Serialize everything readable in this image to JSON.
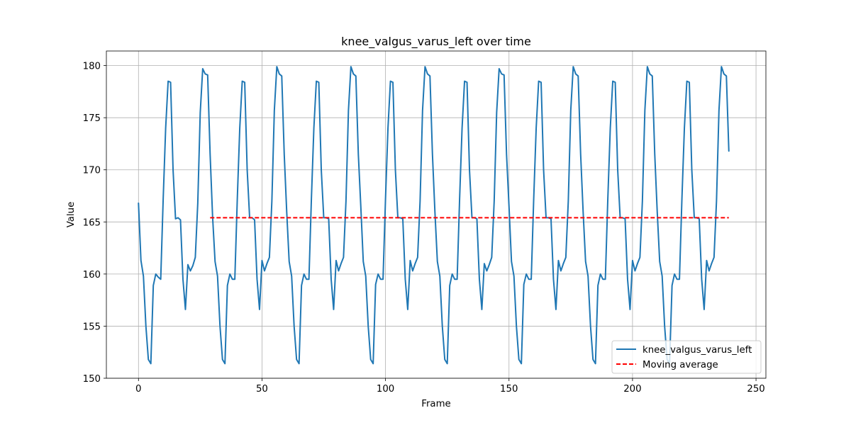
{
  "chart_data": {
    "type": "line",
    "title": "knee_valgus_varus_left over time",
    "xlabel": "Frame",
    "ylabel": "Value",
    "xlim": [
      -13,
      254
    ],
    "ylim": [
      150,
      181.4
    ],
    "xticks": [
      0,
      50,
      100,
      150,
      200,
      250
    ],
    "yticks": [
      150,
      155,
      160,
      165,
      170,
      175,
      180
    ],
    "grid": true,
    "legend_position": "lower-right",
    "series": [
      {
        "name": "knee_valgus_varus_left",
        "color": "#1f77b4",
        "style": "solid",
        "x": [
          0,
          1,
          2,
          3,
          4,
          5,
          6,
          7,
          8,
          9,
          10,
          11,
          12,
          13,
          14,
          15,
          16,
          17,
          18,
          19,
          20,
          21,
          22,
          23,
          24,
          25,
          26,
          27,
          28,
          29,
          30,
          31,
          32,
          33,
          34,
          35,
          36,
          37,
          38,
          39,
          40,
          41,
          42,
          43,
          44,
          45,
          46,
          47,
          48,
          49,
          50,
          51,
          52,
          53,
          54,
          55,
          56,
          57,
          58,
          59,
          60,
          61,
          62,
          63,
          64,
          65,
          66,
          67,
          68,
          69,
          70,
          71,
          72,
          73,
          74,
          75,
          76,
          77,
          78,
          79,
          80,
          81,
          82,
          83,
          84,
          85,
          86,
          87,
          88,
          89,
          90,
          91,
          92,
          93,
          94,
          95,
          96,
          97,
          98,
          99,
          100,
          101,
          102,
          103,
          104,
          105,
          106,
          107,
          108,
          109,
          110,
          111,
          112,
          113,
          114,
          115,
          116,
          117,
          118,
          119,
          120,
          121,
          122,
          123,
          124,
          125,
          126,
          127,
          128,
          129,
          130,
          131,
          132,
          133,
          134,
          135,
          136,
          137,
          138,
          139,
          140,
          141,
          142,
          143,
          144,
          145,
          146,
          147,
          148,
          149,
          150,
          151,
          152,
          153,
          154,
          155,
          156,
          157,
          158,
          159,
          160,
          161,
          162,
          163,
          164,
          165,
          166,
          167,
          168,
          169,
          170,
          171,
          172,
          173,
          174,
          175,
          176,
          177,
          178,
          179,
          180,
          181,
          182,
          183,
          184,
          185,
          186,
          187,
          188,
          189,
          190,
          191,
          192,
          193,
          194,
          195,
          196,
          197,
          198,
          199,
          200,
          201,
          202,
          203,
          204,
          205,
          206,
          207,
          208,
          209,
          210,
          211,
          212,
          213,
          214,
          215,
          216,
          217,
          218,
          219,
          220,
          221,
          222,
          223,
          224,
          225,
          226,
          227,
          228,
          229,
          230,
          231,
          232,
          233,
          234,
          235,
          236,
          237,
          238,
          239
        ],
        "y": [
          166.8,
          161.3,
          159.8,
          155.0,
          151.8,
          151.4,
          158.9,
          160.0,
          159.7,
          159.5,
          167.2,
          174.0,
          178.5,
          178.4,
          170.0,
          165.3,
          165.4,
          165.2,
          159.5,
          156.6,
          160.9,
          160.3,
          160.8,
          161.6,
          166.8,
          175.5,
          179.7,
          179.2,
          179.1,
          171.5,
          165.5,
          161.2,
          159.8,
          155.0,
          151.8,
          151.4,
          158.9,
          160.0,
          159.5,
          159.5,
          167.2,
          174.0,
          178.5,
          178.4,
          170.0,
          165.4,
          165.4,
          165.2,
          159.5,
          156.6,
          161.3,
          160.3,
          161.0,
          161.6,
          167.0,
          175.7,
          179.9,
          179.2,
          179.0,
          171.5,
          166.0,
          161.2,
          159.8,
          155.0,
          151.8,
          151.4,
          158.9,
          160.0,
          159.5,
          159.5,
          167.2,
          174.0,
          178.5,
          178.4,
          170.0,
          165.4,
          165.4,
          165.3,
          159.5,
          156.6,
          161.3,
          160.3,
          161.0,
          161.6,
          167.0,
          175.7,
          179.9,
          179.2,
          179.0,
          171.5,
          166.5,
          161.2,
          159.8,
          155.0,
          151.8,
          151.4,
          159.0,
          160.0,
          159.5,
          159.5,
          167.2,
          174.0,
          178.5,
          178.4,
          170.0,
          165.4,
          165.4,
          165.3,
          159.5,
          156.6,
          161.3,
          160.3,
          161.0,
          161.6,
          167.0,
          175.7,
          179.9,
          179.2,
          179.0,
          171.5,
          166.0,
          161.2,
          159.8,
          155.0,
          151.8,
          151.4,
          158.9,
          160.0,
          159.5,
          159.5,
          167.2,
          174.0,
          178.5,
          178.4,
          170.0,
          165.4,
          165.4,
          165.3,
          159.5,
          156.6,
          161.0,
          160.3,
          160.9,
          161.6,
          167.0,
          175.5,
          179.7,
          179.2,
          179.1,
          171.5,
          166.5,
          161.2,
          159.8,
          155.0,
          151.8,
          151.4,
          159.0,
          160.0,
          159.5,
          159.5,
          167.2,
          174.0,
          178.5,
          178.4,
          170.0,
          165.4,
          165.4,
          165.3,
          159.5,
          156.6,
          161.3,
          160.3,
          161.0,
          161.6,
          167.0,
          175.7,
          179.9,
          179.2,
          179.0,
          171.5,
          166.0,
          161.2,
          159.8,
          155.0,
          151.8,
          151.4,
          158.9,
          160.0,
          159.5,
          159.5,
          167.2,
          174.0,
          178.5,
          178.4,
          170.0,
          165.4,
          165.4,
          165.3,
          159.5,
          156.6,
          161.3,
          160.3,
          161.0,
          161.6,
          167.0,
          175.7,
          179.9,
          179.2,
          179.0,
          171.5,
          166.0,
          161.2,
          159.8,
          155.0,
          151.8,
          151.4,
          158.9,
          160.0,
          159.5,
          159.5,
          167.2,
          174.0,
          178.5,
          178.4,
          170.0,
          165.4,
          165.4,
          165.3,
          159.5,
          156.6,
          161.3,
          160.3,
          161.0,
          161.6,
          167.0,
          175.7,
          179.9,
          179.2,
          179.0,
          171.8
        ]
      },
      {
        "name": "Moving average",
        "color": "#ff0000",
        "style": "dashed",
        "x": [
          29,
          239
        ],
        "y": [
          165.4,
          165.4
        ]
      }
    ]
  }
}
